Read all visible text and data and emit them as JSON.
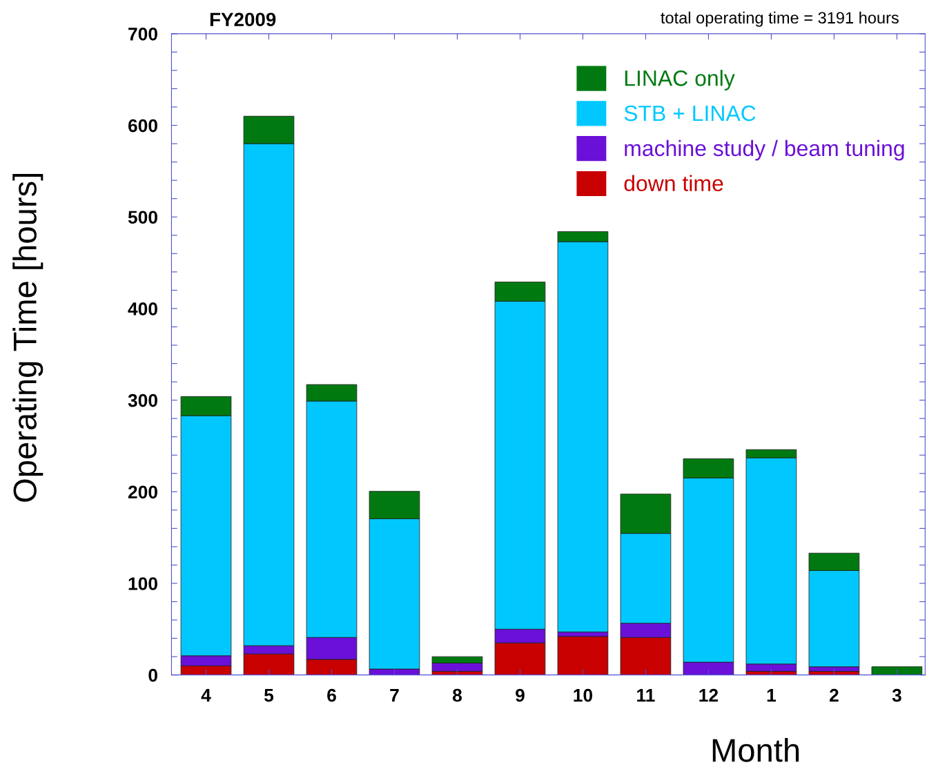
{
  "chart_data": {
    "type": "bar",
    "stacked": true,
    "title": "FY2009",
    "annotations": [
      "total operating time = 3191 hours"
    ],
    "xlabel": "Month",
    "ylabel": "Operating Time [hours]",
    "categories": [
      "4",
      "5",
      "6",
      "7",
      "8",
      "9",
      "10",
      "11",
      "12",
      "1",
      "2",
      "3"
    ],
    "series": [
      {
        "name": "down time",
        "color": "#c80000",
        "values": [
          10,
          23,
          17,
          null,
          4,
          35,
          42,
          41,
          null,
          4,
          4,
          0
        ]
      },
      {
        "name": "machine study / beam tuning",
        "color": "#6a10d8",
        "values": [
          11,
          9,
          24,
          6.5,
          9,
          15,
          5,
          15.5,
          14,
          8,
          5,
          null
        ]
      },
      {
        "name": "STB + LINAC",
        "color": "#00c8ff",
        "values": [
          262,
          548,
          258,
          164,
          0,
          358,
          426,
          98,
          201,
          225,
          105,
          0
        ]
      },
      {
        "name": "LINAC only",
        "color": "#007a10",
        "values": [
          21,
          30,
          18,
          30,
          7,
          21,
          11,
          43,
          21,
          9,
          19,
          9
        ]
      }
    ],
    "ylim": [
      0,
      700
    ],
    "yticks": [
      0,
      {
        "value": 20,
        "label": null
      },
      {
        "value": 40,
        "label": null
      },
      {
        "value": 60,
        "label": null
      },
      {
        "value": 80,
        "label": null
      },
      100,
      {
        "value": 120,
        "label": null
      },
      {
        "value": 140,
        "label": null
      },
      {
        "value": 160,
        "label": null
      },
      {
        "value": 180,
        "label": null
      },
      200,
      {
        "value": 220,
        "label": null
      },
      {
        "value": 240,
        "label": null
      },
      {
        "value": 260,
        "label": null
      },
      {
        "value": 280,
        "label": null
      },
      300,
      {
        "value": 320,
        "label": null
      },
      {
        "value": 340,
        "label": null
      },
      {
        "value": 360,
        "label": null
      },
      {
        "value": 380,
        "label": null
      },
      400,
      {
        "value": 420,
        "label": null
      },
      {
        "value": 440,
        "label": null
      },
      {
        "value": 460,
        "label": null
      },
      {
        "value": 480,
        "label": null
      },
      500,
      {
        "value": 520,
        "label": null
      },
      {
        "value": 540,
        "label": null
      },
      {
        "value": 560,
        "label": null
      },
      {
        "value": 580,
        "label": null
      },
      600,
      {
        "value": 620,
        "label": null
      },
      {
        "value": 640,
        "label": null
      },
      {
        "value": 660,
        "label": null
      },
      {
        "value": 680,
        "label": null
      },
      700
    ],
    "grid": false,
    "legend": "top right"
  }
}
